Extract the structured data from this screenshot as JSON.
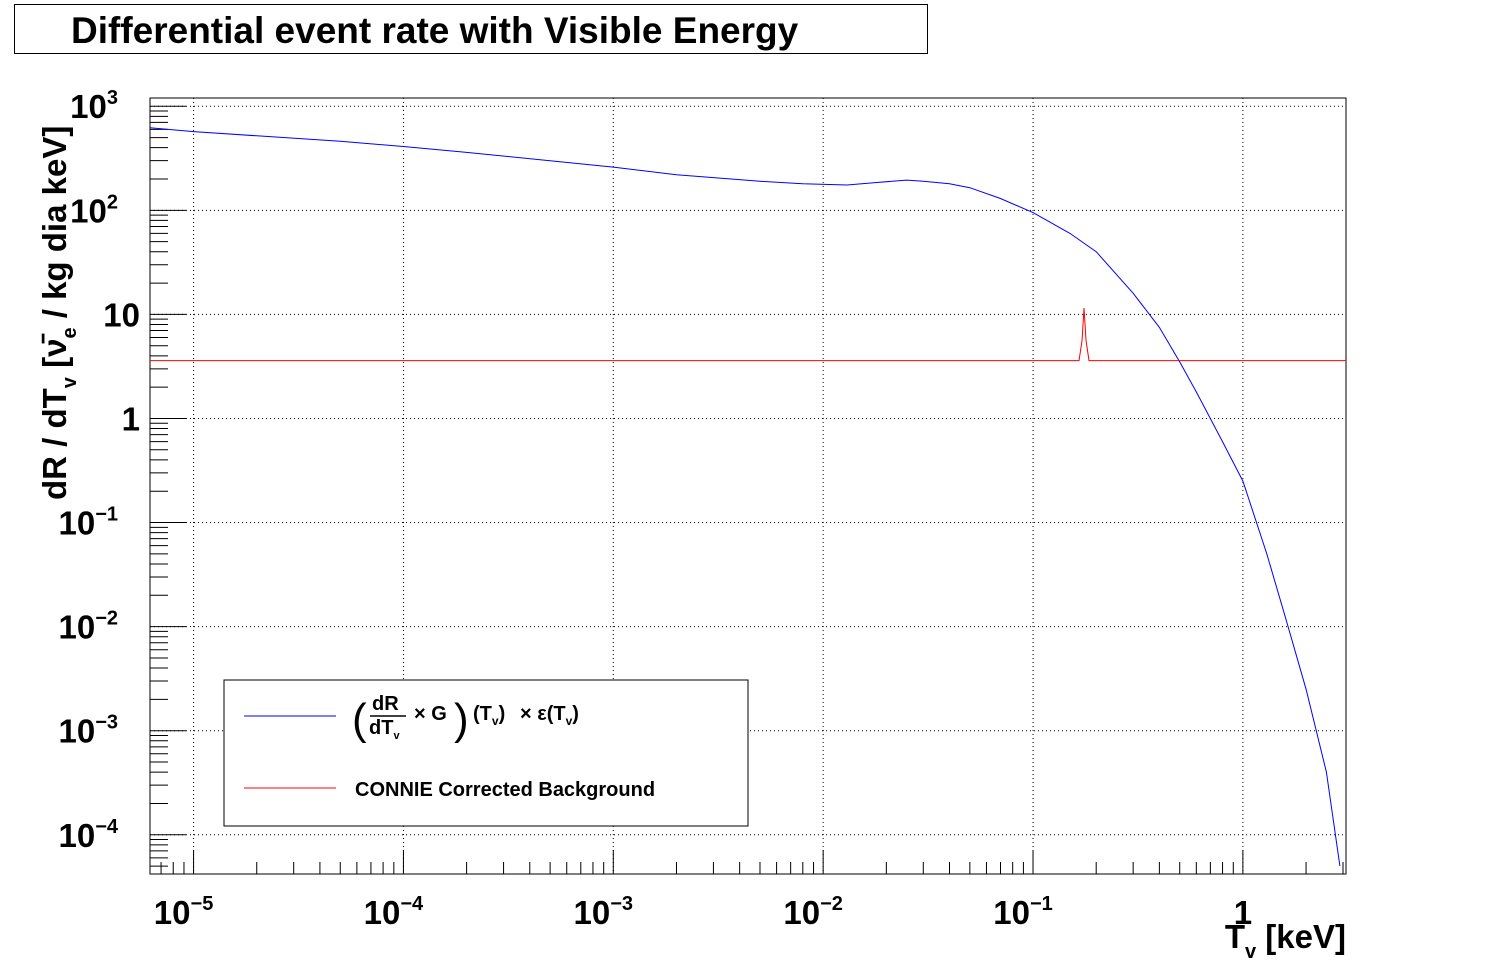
{
  "chart_data": {
    "type": "line",
    "title": "Differential event rate with Visible Energy",
    "xlabel": "T_v [keV]",
    "ylabel": "dR / dT_v [ν̄_e / kg dia keV]",
    "xscale": "log",
    "yscale": "log",
    "xlim": [
      6.2e-06,
      3.1
    ],
    "ylim": [
      4.2e-05,
      1200
    ],
    "grid": true,
    "legend_position": "bottom-left",
    "x_ticks": [
      {
        "base": "10",
        "exp": "−5"
      },
      {
        "base": "10",
        "exp": "−4"
      },
      {
        "base": "10",
        "exp": "−3"
      },
      {
        "base": "10",
        "exp": "−2"
      },
      {
        "base": "10",
        "exp": "−1"
      },
      {
        "base": "1",
        "exp": ""
      }
    ],
    "y_ticks": [
      {
        "base": "10",
        "exp": "−4"
      },
      {
        "base": "10",
        "exp": "−3"
      },
      {
        "base": "10",
        "exp": "−2"
      },
      {
        "base": "10",
        "exp": "−1"
      },
      {
        "base": "1",
        "exp": ""
      },
      {
        "base": "10",
        "exp": ""
      },
      {
        "base": "10",
        "exp": "2"
      },
      {
        "base": "10",
        "exp": "3"
      }
    ],
    "series": [
      {
        "name": "(dR/dT_v × G)(T_v) × ε(T_v)",
        "color": "#0000ff",
        "x": [
          6.2e-06,
          1e-05,
          2e-05,
          5e-05,
          0.0001,
          0.0002,
          0.0005,
          0.001,
          0.002,
          0.005,
          0.008,
          0.013,
          0.018,
          0.025,
          0.03,
          0.04,
          0.05,
          0.07,
          0.1,
          0.15,
          0.2,
          0.3,
          0.4,
          0.5,
          0.6,
          0.8,
          1.0,
          1.3,
          1.6,
          2.0,
          2.5,
          2.9
        ],
        "y": [
          620,
          570,
          520,
          460,
          410,
          360,
          300,
          260,
          220,
          190,
          180,
          175,
          185,
          195,
          190,
          180,
          165,
          130,
          95,
          60,
          40,
          16,
          7.5,
          3.5,
          1.8,
          0.6,
          0.25,
          0.05,
          0.012,
          0.0025,
          0.0004,
          5e-05
        ]
      },
      {
        "name": "CONNIE Corrected Background",
        "color": "#ff0000",
        "flat": 3.6,
        "peak_x": 0.175,
        "peak_y": 11.5
      }
    ]
  },
  "legend": {
    "entry1_frac": "dR",
    "entry1_frac_den": "dT",
    "entry1_frac_den_sub": "v",
    "entry1_times_g": "× G",
    "entry1_tv": "(T",
    "entry1_tv_sub": "v",
    "entry1_tv_close": ")",
    "entry1_eps": "× ε(T",
    "entry1_eps_sub": "v",
    "entry1_eps_close": ")",
    "entry2": "CONNIE Corrected Background"
  },
  "axis_text": {
    "x_title_main": "T",
    "x_title_sub": "v",
    "x_title_unit": " [keV]",
    "y_title_a": "dR / dT",
    "y_title_sub_v": "v",
    "y_title_b": " [ν̄",
    "y_title_sub_e": "e",
    "y_title_c": " / kg dia keV]"
  }
}
